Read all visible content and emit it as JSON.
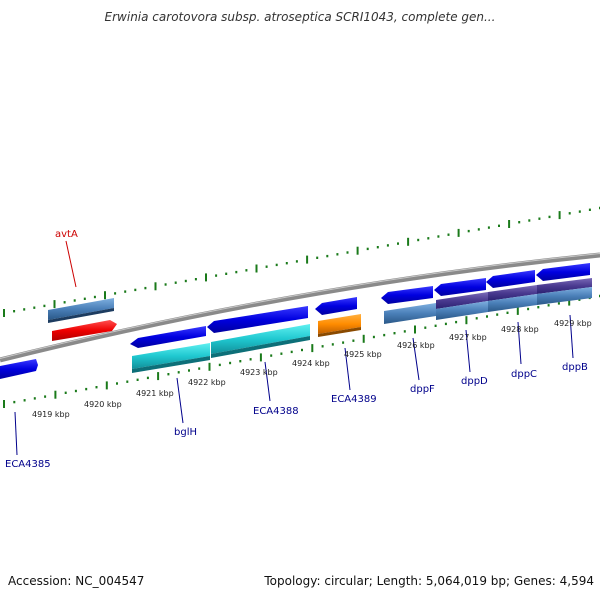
{
  "title": "Erwinia carotovora subsp. atroseptica SCRI1043, complete gen...",
  "footer": {
    "accession": "Accession: NC_004547",
    "topology": "Topology: circular; Length: 5,064,019 bp; Genes: 4,594"
  },
  "colors": {
    "background": "#ffffff",
    "backbone": "#888888",
    "tick": "#1a7a1a",
    "gene_label_default": "#00008b",
    "gene_label_highlight": "#cc0000"
  },
  "kbp_ticks": [
    "4919 kbp",
    "4920 kbp",
    "4921 kbp",
    "4922 kbp",
    "4923 kbp",
    "4924 kbp",
    "4925 kbp",
    "4926 kbp",
    "4927 kbp",
    "4928 kbp",
    "4929 kbp"
  ],
  "gene_labels": [
    {
      "name": "avtA",
      "color": "red"
    },
    {
      "name": "ECA4385",
      "color": "blue"
    },
    {
      "name": "bglH",
      "color": "blue"
    },
    {
      "name": "ECA4388",
      "color": "blue"
    },
    {
      "name": "ECA4389",
      "color": "blue"
    },
    {
      "name": "dppF",
      "color": "blue"
    },
    {
      "name": "dppD",
      "color": "blue"
    },
    {
      "name": "dppC",
      "color": "blue"
    },
    {
      "name": "dppB",
      "color": "blue"
    }
  ]
}
